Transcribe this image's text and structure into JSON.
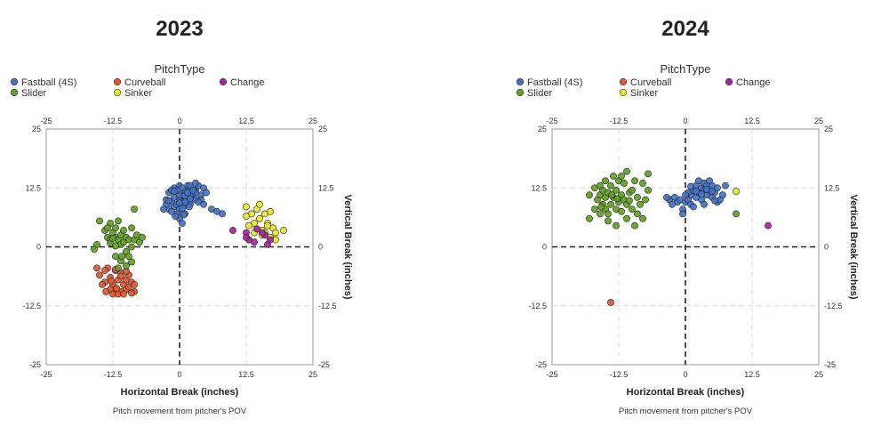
{
  "legend": {
    "title": "PitchType",
    "items": [
      {
        "name": "Fastball (4S)",
        "color": "#4472C4"
      },
      {
        "name": "Curveball",
        "color": "#E2572F"
      },
      {
        "name": "Change",
        "color": "#A6239C"
      },
      {
        "name": "Slider",
        "color": "#5FA121"
      },
      {
        "name": "Sinker",
        "color": "#E8E82A"
      }
    ]
  },
  "chart_data": [
    {
      "type": "scatter",
      "title": "2023",
      "xlabel": "Horizontal Break (inches)",
      "ylabel": "Vertical Break (inches)",
      "caption": "Pitch movement from pitcher's POV",
      "xlim": [
        -25,
        25
      ],
      "ylim": [
        -25,
        25
      ],
      "ticks": [
        "-25",
        "-12.5",
        "0",
        "12.5",
        "25"
      ],
      "grid": true,
      "legend_position": "top",
      "series": [
        {
          "name": "Fastball (4S)",
          "color": "#4472C4",
          "points": [
            [
              -2,
              11.5
            ],
            [
              -1,
              12.5
            ],
            [
              0,
              13
            ],
            [
              0.5,
              11
            ],
            [
              1,
              12
            ],
            [
              1.5,
              13
            ],
            [
              2,
              12.5
            ],
            [
              2.5,
              11.5
            ],
            [
              3,
              12
            ],
            [
              3.5,
              13
            ],
            [
              4,
              11
            ],
            [
              4.5,
              12.5
            ],
            [
              5,
              11.5
            ],
            [
              -2,
              8
            ],
            [
              -2.5,
              9
            ],
            [
              -1.5,
              9.5
            ],
            [
              -1,
              8.5
            ],
            [
              -0.5,
              9
            ],
            [
              0,
              8
            ],
            [
              0,
              10
            ],
            [
              0.5,
              9.5
            ],
            [
              1,
              8.8
            ],
            [
              1.5,
              10
            ],
            [
              2,
              9
            ],
            [
              2.5,
              10.5
            ],
            [
              3,
              10
            ],
            [
              -1,
              10.5
            ],
            [
              0,
              11
            ],
            [
              1,
              10.8
            ],
            [
              2,
              11
            ],
            [
              3,
              11.5
            ],
            [
              -0.5,
              7
            ],
            [
              0,
              6
            ],
            [
              0.5,
              5
            ],
            [
              -1.5,
              7.5
            ],
            [
              1,
              7
            ],
            [
              -3,
              8
            ],
            [
              -1.5,
              12
            ],
            [
              2,
              13
            ],
            [
              3,
              13.5
            ],
            [
              4,
              10
            ],
            [
              6,
              8
            ],
            [
              7,
              7.5
            ],
            [
              8,
              7
            ],
            [
              -0.5,
              12
            ],
            [
              1.5,
              11.5
            ],
            [
              0.5,
              12.5
            ],
            [
              2.5,
              12
            ],
            [
              -2.5,
              10
            ],
            [
              1,
              9.5
            ],
            [
              3.5,
              9.5
            ],
            [
              0,
              9.3
            ],
            [
              -1,
              11.8
            ],
            [
              2,
              10.2
            ],
            [
              0.5,
              8.2
            ],
            [
              -2,
              9.8
            ],
            [
              1.8,
              8.5
            ],
            [
              4.5,
              9
            ],
            [
              -0.8,
              6.5
            ],
            [
              0.8,
              6.8
            ]
          ]
        },
        {
          "name": "Curveball",
          "color": "#E2572F",
          "points": [
            [
              -15,
              -6
            ],
            [
              -14,
              -7.5
            ],
            [
              -13.5,
              -4.5
            ],
            [
              -13,
              -6.5
            ],
            [
              -12.5,
              -8
            ],
            [
              -12,
              -5
            ],
            [
              -12,
              -9
            ],
            [
              -11.5,
              -7
            ],
            [
              -11,
              -9.5
            ],
            [
              -11,
              -5.5
            ],
            [
              -10.5,
              -8
            ],
            [
              -10,
              -7
            ],
            [
              -10,
              -9
            ],
            [
              -9.5,
              -6
            ],
            [
              -9.5,
              -8.5
            ],
            [
              -9,
              -7.5
            ],
            [
              -8.5,
              -8
            ],
            [
              -8.5,
              -9.5
            ],
            [
              -13,
              -9
            ],
            [
              -12.5,
              -10
            ],
            [
              -11.5,
              -10
            ],
            [
              -10.5,
              -10
            ],
            [
              -14,
              -5
            ],
            [
              -15.5,
              -4.5
            ],
            [
              -12,
              -4.8
            ],
            [
              -11,
              -6.2
            ],
            [
              -13.8,
              -9.5
            ],
            [
              -10,
              -5.2
            ],
            [
              -12.8,
              -7.2
            ],
            [
              -9,
              -9.8
            ],
            [
              -14.5,
              -8
            ],
            [
              -11.8,
              -8.8
            ]
          ]
        },
        {
          "name": "Slider",
          "color": "#5FA121",
          "points": [
            [
              -15,
              5.5
            ],
            [
              -14,
              3.5
            ],
            [
              -13.5,
              2
            ],
            [
              -13,
              1.5
            ],
            [
              -13,
              5
            ],
            [
              -12.5,
              3
            ],
            [
              -12,
              2
            ],
            [
              -12,
              4
            ],
            [
              -11.5,
              1.5
            ],
            [
              -11.5,
              5.5
            ],
            [
              -11,
              2.5
            ],
            [
              -11,
              0.5
            ],
            [
              -10.5,
              1
            ],
            [
              -10.5,
              3.5
            ],
            [
              -10,
              2
            ],
            [
              -10,
              -1
            ],
            [
              -9.5,
              1.5
            ],
            [
              -9.5,
              -2
            ],
            [
              -9,
              0
            ],
            [
              -9,
              4
            ],
            [
              -8.5,
              1.5
            ],
            [
              -8.5,
              8
            ],
            [
              -8,
              2.5
            ],
            [
              -7.5,
              1
            ],
            [
              -7,
              2
            ],
            [
              -12,
              -2
            ],
            [
              -11,
              -3
            ],
            [
              -11.5,
              -4.5
            ],
            [
              -10,
              -4
            ],
            [
              -16,
              -0.5
            ],
            [
              -15.5,
              0.5
            ],
            [
              -13,
              0.8
            ],
            [
              -12,
              0.2
            ],
            [
              -9,
              -3.2
            ],
            [
              -10.8,
              -2
            ],
            [
              -12.5,
              1.8
            ],
            [
              -13.5,
              4
            ]
          ]
        },
        {
          "name": "Sinker",
          "color": "#E8E82A",
          "points": [
            [
              12.5,
              8.5
            ],
            [
              13.5,
              7
            ],
            [
              14,
              5
            ],
            [
              14.5,
              8
            ],
            [
              15,
              6
            ],
            [
              15.5,
              3.5
            ],
            [
              16,
              7
            ],
            [
              16.5,
              5
            ],
            [
              17,
              7.5
            ],
            [
              17.5,
              4
            ],
            [
              18,
              3
            ],
            [
              18,
              1.5
            ],
            [
              19.5,
              3.5
            ],
            [
              15,
              9
            ],
            [
              16,
              3
            ],
            [
              17,
              2
            ],
            [
              14,
              3
            ],
            [
              13,
              4.5
            ],
            [
              12.5,
              6.5
            ],
            [
              16.5,
              4.5
            ],
            [
              13,
              1.5
            ],
            [
              15.5,
              2.5
            ]
          ]
        },
        {
          "name": "Change",
          "color": "#A6239C",
          "points": [
            [
              10,
              3.5
            ],
            [
              12.5,
              3
            ],
            [
              13,
              1.5
            ],
            [
              14,
              1
            ],
            [
              14.5,
              3.8
            ],
            [
              16,
              2.5
            ],
            [
              17,
              1.5
            ],
            [
              16.5,
              0.5
            ],
            [
              15.5,
              3
            ],
            [
              12.5,
              2
            ]
          ]
        }
      ]
    },
    {
      "type": "scatter",
      "title": "2024",
      "xlabel": "Horizontal Break (inches)",
      "ylabel": "Vertical Break (inches)",
      "caption": "Pitch movement from pitcher's POV",
      "xlim": [
        -25,
        25
      ],
      "ylim": [
        -25,
        25
      ],
      "ticks": [
        "-25",
        "-12.5",
        "0",
        "12.5",
        "25"
      ],
      "grid": true,
      "legend_position": "top",
      "series": [
        {
          "name": "Fastball (4S)",
          "color": "#4472C4",
          "points": [
            [
              -3,
              10
            ],
            [
              -2,
              10.5
            ],
            [
              -1.5,
              9.5
            ],
            [
              -1,
              10
            ],
            [
              -0.5,
              8
            ],
            [
              0,
              9.5
            ],
            [
              0.5,
              10
            ],
            [
              1,
              11
            ],
            [
              1,
              9
            ],
            [
              1.5,
              12
            ],
            [
              2,
              10.5
            ],
            [
              2,
              13
            ],
            [
              2.5,
              11.5
            ],
            [
              3,
              12.5
            ],
            [
              3,
              10
            ],
            [
              3.5,
              12
            ],
            [
              3.5,
              13.5
            ],
            [
              4,
              11
            ],
            [
              4,
              13
            ],
            [
              4.5,
              12
            ],
            [
              5,
              10.5
            ],
            [
              5,
              13
            ],
            [
              5.5,
              11.5
            ],
            [
              6,
              12.5
            ],
            [
              6,
              9.5
            ],
            [
              6.5,
              10
            ],
            [
              7,
              11
            ],
            [
              7.5,
              13
            ],
            [
              -0.5,
              7
            ],
            [
              1.5,
              8.5
            ],
            [
              0.5,
              11.5
            ],
            [
              2.5,
              14
            ],
            [
              3.5,
              9
            ],
            [
              4.5,
              14
            ],
            [
              5.5,
              9.8
            ],
            [
              -2.5,
              9
            ],
            [
              -3.5,
              10.5
            ],
            [
              2,
              11.8
            ],
            [
              3,
              11.2
            ],
            [
              4,
              12.2
            ],
            [
              1,
              12.8
            ],
            [
              0,
              11
            ],
            [
              5,
              11.8
            ]
          ]
        },
        {
          "name": "Slider",
          "color": "#5FA121",
          "points": [
            [
              -18,
              11
            ],
            [
              -18,
              6
            ],
            [
              -17,
              8
            ],
            [
              -17,
              12.5
            ],
            [
              -16.5,
              10
            ],
            [
              -16,
              11
            ],
            [
              -16,
              7
            ],
            [
              -15.5,
              9
            ],
            [
              -15.5,
              12
            ],
            [
              -15,
              10.5
            ],
            [
              -15,
              8
            ],
            [
              -14.5,
              7
            ],
            [
              -14.5,
              11.5
            ],
            [
              -14,
              9
            ],
            [
              -14,
              13
            ],
            [
              -13.5,
              10.5
            ],
            [
              -13.5,
              15
            ],
            [
              -13,
              8
            ],
            [
              -13,
              12
            ],
            [
              -12.5,
              9.5
            ],
            [
              -12.5,
              14
            ],
            [
              -12,
              11
            ],
            [
              -12,
              7.5
            ],
            [
              -11.5,
              10
            ],
            [
              -11.5,
              13.5
            ],
            [
              -11,
              9
            ],
            [
              -11,
              6
            ],
            [
              -10.5,
              11.5
            ],
            [
              -10,
              8
            ],
            [
              -10,
              12
            ],
            [
              -9.5,
              14
            ],
            [
              -9,
              10.5
            ],
            [
              -9,
              7
            ],
            [
              -8.5,
              9
            ],
            [
              -8,
              13.5
            ],
            [
              -7.5,
              10
            ],
            [
              -7,
              12
            ],
            [
              -8,
              6
            ],
            [
              -9.5,
              4.5
            ],
            [
              -13,
              4.5
            ],
            [
              -16,
              13
            ],
            [
              -12,
              15
            ],
            [
              -14.5,
              5.5
            ],
            [
              -11,
              16
            ],
            [
              -15,
              14
            ],
            [
              -12.8,
              10.2
            ],
            [
              -13.8,
              11
            ],
            [
              -10.5,
              9.8
            ],
            [
              -15.8,
              8.5
            ],
            [
              -7,
              15.5
            ],
            [
              9.5,
              7
            ]
          ]
        },
        {
          "name": "Sinker",
          "color": "#E8E82A",
          "points": [
            [
              9.5,
              11.8
            ]
          ]
        },
        {
          "name": "Curveball",
          "color": "#E2572F",
          "points": [
            [
              -14,
              -11.8
            ]
          ]
        },
        {
          "name": "Change",
          "color": "#A6239C",
          "points": [
            [
              15.5,
              4.5
            ]
          ]
        }
      ]
    }
  ]
}
